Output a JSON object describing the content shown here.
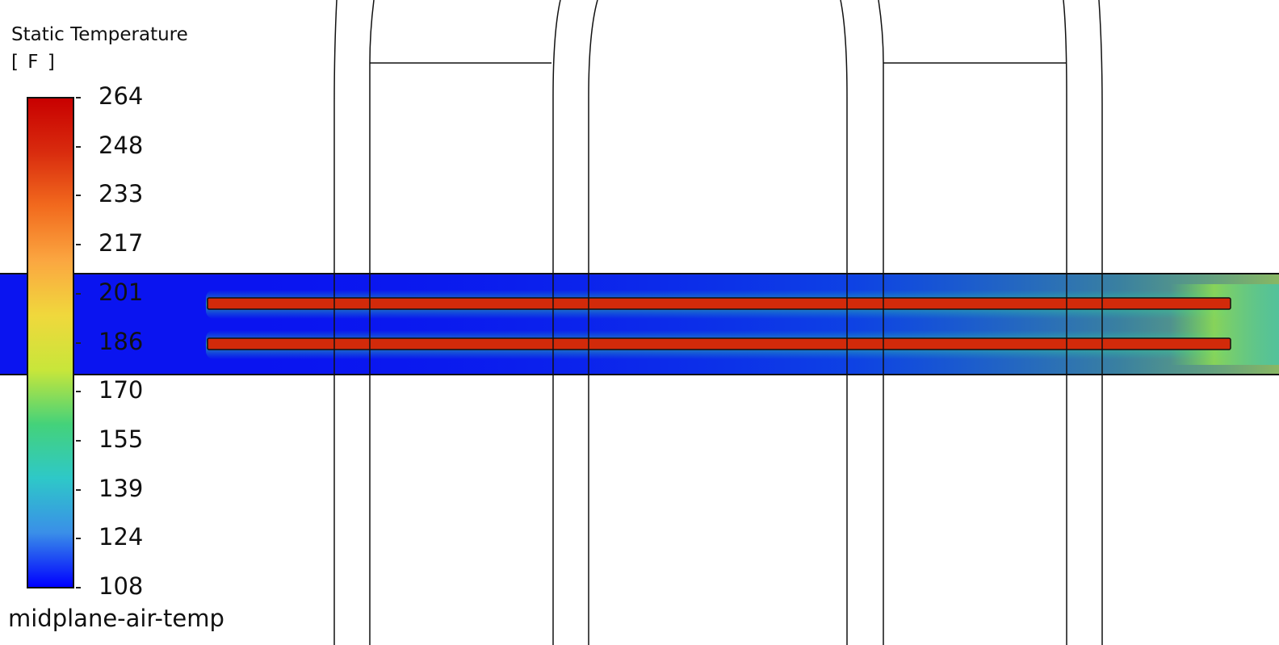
{
  "legend": {
    "title_line1": "Static Temperature",
    "title_line2": "[ F ]",
    "ticks": [
      "264",
      "248",
      "233",
      "217",
      "201",
      "186",
      "170",
      "155",
      "139",
      "124",
      "108"
    ],
    "min": 108,
    "max": 264,
    "colormap": [
      "#0000ff",
      "#3a8fe8",
      "#2ec8c8",
      "#44d27a",
      "#c8e63a",
      "#f0d83c",
      "#fba741",
      "#f26b1e",
      "#d92c0e",
      "#c80000"
    ]
  },
  "viewport": {
    "label": "midplane-air-temp",
    "background": "#ffffff",
    "air_color": "#0a14f0",
    "heater_color": "#d22a0a",
    "outline_color": "#111111"
  }
}
